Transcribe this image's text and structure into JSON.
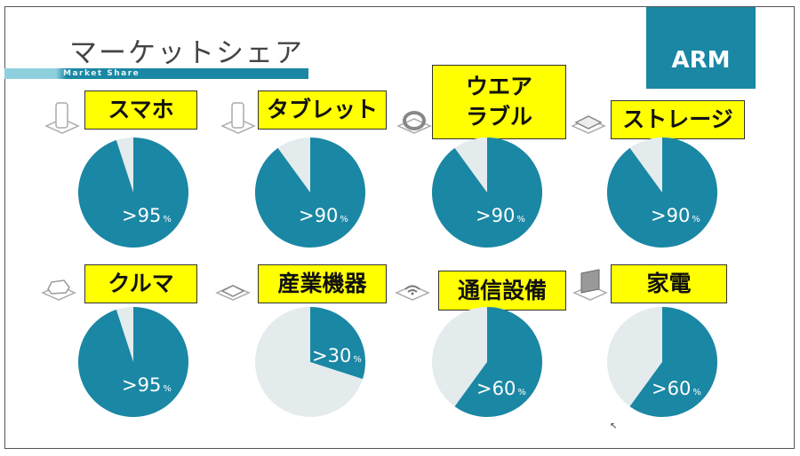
{
  "title": "マーケットシェア",
  "subtitle": "Market Share",
  "logo": "ARM",
  "colors": {
    "accent": "#1a87a4",
    "remainder": "#e3ebed",
    "label_bg": "#ffff00"
  },
  "chart_data": {
    "type": "pie",
    "title": "マーケットシェア",
    "unit": "%",
    "series": [
      {
        "name": "スマホ",
        "value": 95,
        "label": ">95",
        "icon": "smartphone-icon"
      },
      {
        "name": "タブレット",
        "value": 90,
        "label": ">90",
        "icon": "tablet-icon"
      },
      {
        "name": "ウエア ラブル",
        "value": 90,
        "label": ">90",
        "icon": "wearable-ring-icon"
      },
      {
        "name": "ストレージ",
        "value": 90,
        "label": ">90",
        "icon": "storage-drive-icon"
      },
      {
        "name": "クルマ",
        "value": 95,
        "label": ">95",
        "icon": "car-icon"
      },
      {
        "name": "産業機器",
        "value": 30,
        "label": ">30",
        "icon": "chip-icon"
      },
      {
        "name": "通信設備",
        "value": 60,
        "label": ">60",
        "icon": "wifi-icon"
      },
      {
        "name": "家電",
        "value": 60,
        "label": ">60",
        "icon": "tv-icon"
      }
    ]
  }
}
